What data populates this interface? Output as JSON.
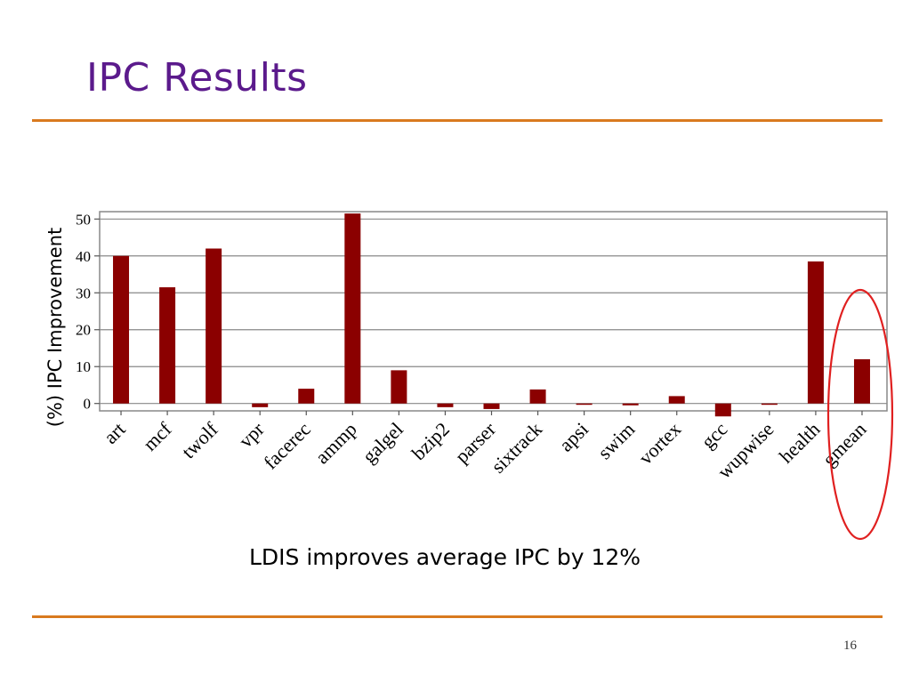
{
  "slide": {
    "title": "IPC Results",
    "caption": "LDIS improves average IPC by 12%",
    "page_number": "16"
  },
  "colors": {
    "title": "#5b1a8c",
    "rule": "#d97a1f",
    "bar": "#8b0000",
    "highlight": "#e02020"
  },
  "chart_data": {
    "type": "bar",
    "ylabel": "(%) IPC Improvement",
    "ylim": [
      -2,
      52
    ],
    "yticks": [
      0,
      10,
      20,
      30,
      40,
      50
    ],
    "grid": "horizontal",
    "categories": [
      "art",
      "mcf",
      "twolf",
      "vpr",
      "facerec",
      "ammp",
      "galgel",
      "bzip2",
      "parser",
      "sixtrack",
      "apsi",
      "swim",
      "vortex",
      "gcc",
      "wupwise",
      "health",
      "gmean"
    ],
    "values": [
      40,
      31.5,
      42,
      -1,
      4,
      51.5,
      9,
      -1,
      -1.5,
      3.8,
      -0.3,
      -0.5,
      2,
      -3.5,
      -0.3,
      38.5,
      12
    ],
    "highlighted_category": "gmean"
  }
}
